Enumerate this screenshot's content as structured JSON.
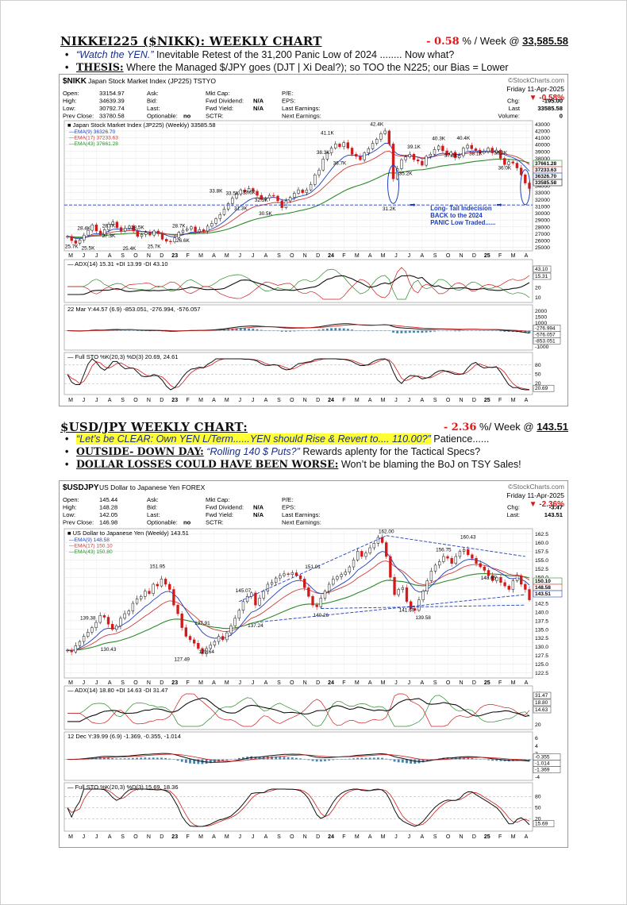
{
  "section1": {
    "title": "NIKKEI225 ($NIKK): WEEKLY CHART",
    "change_pct": "- 0.58",
    "change_suffix": " % / Week @ ",
    "last": "33,585.58",
    "bullets": [
      {
        "quote": "“Watch the YEN.”",
        "text": "  Inevitable Retest of the 31,200 Panic Low of 2024 ........ Now what?"
      },
      {
        "label": "THESIS:",
        "text": " Where the Managed $/JPY goes (DJT | Xi Deal?); so TOO the N225; our Bias = Lower"
      }
    ]
  },
  "section2": {
    "title": "$USD/JPY WEEKLY CHART:",
    "change_pct": "- 2.36",
    "change_suffix": " %/ Week @ ",
    "last": "143.51",
    "bullets": [
      {
        "quote": "“Let’s be CLEAR: Own YEN L/Term......YEN should Rise & Revert to.... 110.00?”",
        "text": "   Patience......"
      },
      {
        "label": "OUTSIDE- DOWN DAY:",
        "quote": " “Rolling 140 $ Puts?”",
        "text": "  Rewards aplenty for the Tactical Specs?"
      },
      {
        "label": "DOLLAR LOSSES COULD HAVE BEEN WORSE:",
        "text": " Won’t be blaming the BoJ on TSY Sales!"
      }
    ]
  },
  "chart_data": [
    {
      "type": "candlestick",
      "symbol": "$NIKK",
      "title": "Japan Stock Market Index (JP225) TSTYO",
      "brand": "©StockCharts.com",
      "date": "Friday 11-Apr-2025",
      "change_pct": "▼ -0.58%",
      "quote": {
        "left": [
          [
            "Open:",
            "33154.97"
          ],
          [
            "High:",
            "34639.39"
          ],
          [
            "Low:",
            "30792.74"
          ],
          [
            "Prev Close:",
            "33780.58"
          ]
        ],
        "mid": [
          [
            "Ask:",
            ""
          ],
          [
            "Bid:",
            ""
          ],
          [
            "Last:",
            ""
          ],
          [
            "Optionable:",
            "no"
          ]
        ],
        "mid2": [
          [
            "Mkt Cap:",
            ""
          ],
          [
            "Fwd Dividend:",
            "N/A"
          ],
          [
            "Fwd Yield:",
            "N/A"
          ],
          [
            "SCTR:",
            ""
          ]
        ],
        "mid3": [
          [
            "P/E:",
            ""
          ],
          [
            "EPS:",
            ""
          ],
          [
            "Last Earnings:",
            ""
          ],
          [
            "Next Earnings:",
            ""
          ]
        ],
        "right": [
          [
            "Chg:",
            "-195.00"
          ],
          [
            "Last",
            "33585.58"
          ],
          [
            "Volume:",
            "0"
          ]
        ]
      },
      "legend_title": "Japan Stock Market Index (JP225) (Weekly) 33585.58",
      "legend": [
        {
          "name": "EMA(9) 36326.70",
          "color": "#1f3fbf"
        },
        {
          "name": "EMA(17) 37233.63",
          "color": "#d23a3a"
        },
        {
          "name": "EMA(43) 37661.28",
          "color": "#2c8a2c"
        }
      ],
      "ylim": [
        24500,
        43500
      ],
      "y_ticks": [
        25000,
        26000,
        27000,
        28000,
        29000,
        30000,
        31000,
        32000,
        33000,
        34000,
        35000,
        36000,
        37000,
        38000,
        39000,
        40000,
        41000,
        42000,
        43000
      ],
      "x_ticks": [
        "M",
        "J",
        "J",
        "A",
        "S",
        "O",
        "N",
        "D",
        "23",
        "F",
        "M",
        "A",
        "M",
        "J",
        "J",
        "A",
        "S",
        "O",
        "N",
        "D",
        "24",
        "F",
        "M",
        "A",
        "M",
        "J",
        "J",
        "A",
        "S",
        "O",
        "N",
        "D",
        "25",
        "F",
        "M",
        "A"
      ],
      "price_labels": [
        {
          "text": "25.7K",
          "x": 1,
          "y": 25700
        },
        {
          "text": "28.4K",
          "x": 4,
          "y": 28400
        },
        {
          "text": "25.5K",
          "x": 5,
          "y": 25500
        },
        {
          "text": "28.7K",
          "x": 10,
          "y": 28700
        },
        {
          "text": "27.3K",
          "x": 10,
          "y": 27300
        },
        {
          "text": "28.5K",
          "x": 17,
          "y": 28500
        },
        {
          "text": "25.4K",
          "x": 15,
          "y": 25400
        },
        {
          "text": "25.7K",
          "x": 21,
          "y": 25700
        },
        {
          "text": "28.7K",
          "x": 27,
          "y": 28700
        },
        {
          "text": "26.6K",
          "x": 28,
          "y": 26600
        },
        {
          "text": "33.8K",
          "x": 36,
          "y": 33800
        },
        {
          "text": "33.5K",
          "x": 40,
          "y": 33500
        },
        {
          "text": "33.6K",
          "x": 44,
          "y": 33600
        },
        {
          "text": "31.3K",
          "x": 42,
          "y": 31300
        },
        {
          "text": "32.5K",
          "x": 47,
          "y": 32500
        },
        {
          "text": "30.5K",
          "x": 48,
          "y": 30500
        },
        {
          "text": "41.1K",
          "x": 63,
          "y": 41100
        },
        {
          "text": "38.3K",
          "x": 62,
          "y": 38300
        },
        {
          "text": "36.7K",
          "x": 66,
          "y": 36700
        },
        {
          "text": "42.4K",
          "x": 75,
          "y": 42400
        },
        {
          "text": "31.2K",
          "x": 78,
          "y": 31200
        },
        {
          "text": "39.1K",
          "x": 84,
          "y": 39100
        },
        {
          "text": "35.2K",
          "x": 82,
          "y": 35200
        },
        {
          "text": "40.3K",
          "x": 90,
          "y": 40300
        },
        {
          "text": "37.8K",
          "x": 93,
          "y": 37800
        },
        {
          "text": "40.4K",
          "x": 96,
          "y": 40400
        },
        {
          "text": "38.1K",
          "x": 99,
          "y": 38100
        },
        {
          "text": "38.2K",
          "x": 105,
          "y": 38200
        },
        {
          "text": "36.0K",
          "x": 106,
          "y": 36000
        }
      ],
      "y_boxes": [
        "37661.28",
        "37233.63",
        "36326.70",
        "33585.58"
      ],
      "annotation": "Long- Tail Indecision BACK to the 2024 PANIC Low Traded......",
      "support_level": 31200,
      "closes": [
        26600,
        26000,
        25600,
        26100,
        26800,
        27500,
        28300,
        27400,
        26900,
        27600,
        28400,
        28700,
        27900,
        27400,
        27800,
        28100,
        27400,
        26600,
        26900,
        27200,
        26800,
        27400,
        27000,
        26200,
        25900,
        25800,
        26400,
        27200,
        27500,
        27700,
        28000,
        27300,
        27600,
        27400,
        28100,
        28500,
        29200,
        29800,
        30600,
        31400,
        32200,
        32800,
        33400,
        33100,
        33600,
        33200,
        32600,
        32000,
        32200,
        32600,
        32500,
        31800,
        30800,
        31800,
        32300,
        32900,
        33400,
        33000,
        33400,
        34200,
        35600,
        36300,
        37900,
        38800,
        39500,
        40100,
        39700,
        40300,
        39500,
        38600,
        38300,
        37800,
        38800,
        39400,
        40200,
        40800,
        41600,
        42000,
        40100,
        35000,
        36500,
        37800,
        38200,
        38600,
        37800,
        37600,
        37000,
        38300,
        38600,
        39300,
        39800,
        39100,
        38500,
        38900,
        38100,
        38400,
        39500,
        39900,
        39400,
        39200,
        38800,
        39000,
        39500,
        38800,
        39200,
        38000,
        37100,
        37500,
        37300,
        36600,
        35600,
        34400,
        33600
      ]
    },
    {
      "type": "candlestick",
      "symbol": "$USDJPY",
      "title": "US Dollar to Japanese Yen FOREX",
      "brand": "©StockCharts.com",
      "date": "Friday 11-Apr-2025",
      "change_pct": "▼ -2.36%",
      "quote": {
        "left": [
          [
            "Open:",
            "145.44"
          ],
          [
            "High:",
            "148.28"
          ],
          [
            "Low:",
            "142.05"
          ],
          [
            "Prev Close:",
            "146.98"
          ]
        ],
        "mid": [
          [
            "Ask:",
            ""
          ],
          [
            "Bid:",
            ""
          ],
          [
            "Last:",
            ""
          ],
          [
            "Optionable:",
            "no"
          ]
        ],
        "mid2": [
          [
            "Mkt Cap:",
            ""
          ],
          [
            "Fwd Dividend:",
            "N/A"
          ],
          [
            "Fwd Yield:",
            "N/A"
          ],
          [
            "SCTR:",
            ""
          ]
        ],
        "mid3": [
          [
            "P/E:",
            ""
          ],
          [
            "EPS:",
            ""
          ],
          [
            "Last Earnings:",
            ""
          ],
          [
            "Next Earnings:",
            ""
          ]
        ],
        "right": [
          [
            "Chg:",
            "-3.47"
          ],
          [
            "Last:",
            "143.51"
          ]
        ]
      },
      "legend_title": "US Dollar to Japanese Yen (Weekly) 143.51",
      "legend": [
        {
          "name": "EMA(9) 148.58",
          "color": "#1f3fbf"
        },
        {
          "name": "EMA(17) 150.10",
          "color": "#d23a3a"
        },
        {
          "name": "EMA(43) 150.80",
          "color": "#2c8a2c"
        }
      ],
      "ylim": [
        121,
        164
      ],
      "y_ticks": [
        122.5,
        125.0,
        127.5,
        130.0,
        132.5,
        135.0,
        137.5,
        140.0,
        142.5,
        145.0,
        147.5,
        150.0,
        152.5,
        155.0,
        157.5,
        160.0,
        162.5
      ],
      "x_ticks": [
        "M",
        "J",
        "J",
        "A",
        "S",
        "O",
        "N",
        "D",
        "23",
        "F",
        "M",
        "A",
        "M",
        "J",
        "J",
        "A",
        "S",
        "O",
        "N",
        "D",
        "24",
        "F",
        "M",
        "A",
        "M",
        "J",
        "J",
        "A",
        "S",
        "O",
        "N",
        "D",
        "25",
        "F",
        "M",
        "A"
      ],
      "price_labels": [
        {
          "text": "139.38",
          "x": 5,
          "y": 139.38
        },
        {
          "text": "130.43",
          "x": 10,
          "y": 130.43
        },
        {
          "text": "151.95",
          "x": 22,
          "y": 151.95
        },
        {
          "text": "127.49",
          "x": 28,
          "y": 127.49
        },
        {
          "text": "137.91",
          "x": 33,
          "y": 137.91
        },
        {
          "text": "129.64",
          "x": 34,
          "y": 129.64
        },
        {
          "text": "145.07",
          "x": 43,
          "y": 145.07
        },
        {
          "text": "137.24",
          "x": 46,
          "y": 137.24
        },
        {
          "text": "151.91",
          "x": 60,
          "y": 151.91
        },
        {
          "text": "140.26",
          "x": 62,
          "y": 140.26
        },
        {
          "text": "162.00",
          "x": 78,
          "y": 162.0
        },
        {
          "text": "141.69",
          "x": 83,
          "y": 141.69
        },
        {
          "text": "139.58",
          "x": 87,
          "y": 139.58
        },
        {
          "text": "156.75",
          "x": 92,
          "y": 156.75
        },
        {
          "text": "160.43",
          "x": 98,
          "y": 160.43
        },
        {
          "text": "148.65",
          "x": 103,
          "y": 148.65
        }
      ],
      "y_boxes": [
        "150.10",
        "148.58",
        "143.51"
      ],
      "closes": [
        129.0,
        128.5,
        130.3,
        131.5,
        133.0,
        134.2,
        135.5,
        137.0,
        139.0,
        138.5,
        136.5,
        135.0,
        136.0,
        138.2,
        139.5,
        140.3,
        142.5,
        143.8,
        144.5,
        146.0,
        145.3,
        148.0,
        147.5,
        149.5,
        148.0,
        146.5,
        142.0,
        139.5,
        135.5,
        133.0,
        132.0,
        131.0,
        129.5,
        128.0,
        129.5,
        130.5,
        131.5,
        133.0,
        132.0,
        134.0,
        136.0,
        138.2,
        140.5,
        143.0,
        144.5,
        145.5,
        142.0,
        144.0,
        146.0,
        148.0,
        148.5,
        149.8,
        150.5,
        151.0,
        150.8,
        151.3,
        150.5,
        149.5,
        147.0,
        144.5,
        142.0,
        141.5,
        144.0,
        146.0,
        148.0,
        149.5,
        150.2,
        150.8,
        151.5,
        153.0,
        155.0,
        157.5,
        156.0,
        157.0,
        158.5,
        159.8,
        161.5,
        160.0,
        156.0,
        150.0,
        145.0,
        146.5,
        147.0,
        143.0,
        141.0,
        140.5,
        143.5,
        146.0,
        149.0,
        151.8,
        153.5,
        154.5,
        156.0,
        155.5,
        154.0,
        156.0,
        157.5,
        158.0,
        156.5,
        155.5,
        154.0,
        153.0,
        152.0,
        150.5,
        149.0,
        150.0,
        148.5,
        147.5,
        146.5,
        149.0,
        150.5,
        148.0,
        146.5,
        143.5
      ]
    }
  ],
  "indicators_nikk": {
    "adx_label": "ADX(14) 15.31 +DI 13.99 -DI 43.10",
    "adx_ticks": [
      "40",
      "30",
      "20",
      "10"
    ],
    "adx_boxes": [
      "43.10",
      "15.31"
    ],
    "macd_label": "22 Mar Y:44.57 (6.9) -853.051, -276.994, -576.057",
    "macd_ticks": [
      "2000",
      "1500",
      "1000",
      "500",
      "0",
      "-500",
      "-1000"
    ],
    "macd_boxes": [
      "-276.994",
      "-576.057",
      "-853.051"
    ],
    "sto_label": "Full STO %K(20,3) %D(3) 20.69, 24.61",
    "sto_ticks": [
      "80",
      "50",
      "20"
    ],
    "sto_box": "20.69"
  },
  "indicators_usd": {
    "adx_label": "ADX(14) 18.80 +DI 14.63 -DI 31.47",
    "adx_ticks": [
      "40",
      "20"
    ],
    "adx_boxes": [
      "31.47",
      "18.80",
      "14.63"
    ],
    "macd_label": "12 Dec Y:39.99 (6.9) -1.369, -0.355, -1.014",
    "macd_ticks": [
      "6",
      "4",
      "2",
      "0",
      "-2",
      "-4"
    ],
    "macd_boxes": [
      "-0.355",
      "-1.014",
      "-1.369"
    ],
    "sto_label": "Full STO %K(20,3) %D(3) 15.69, 18.36",
    "sto_ticks": [
      "80",
      "50",
      "20"
    ],
    "sto_box": "15.69"
  },
  "colors": {
    "up": "#111111",
    "down": "#d01b1b",
    "ema9": "#1f3fbf",
    "ema17": "#d23a3a",
    "ema43": "#2c8a2c",
    "highlight": "#ffff33",
    "accent_red": "#e21818",
    "navy": "#1a2f86",
    "annot_blue": "#1f3fbf",
    "macd_hist": "#3b86b4"
  }
}
